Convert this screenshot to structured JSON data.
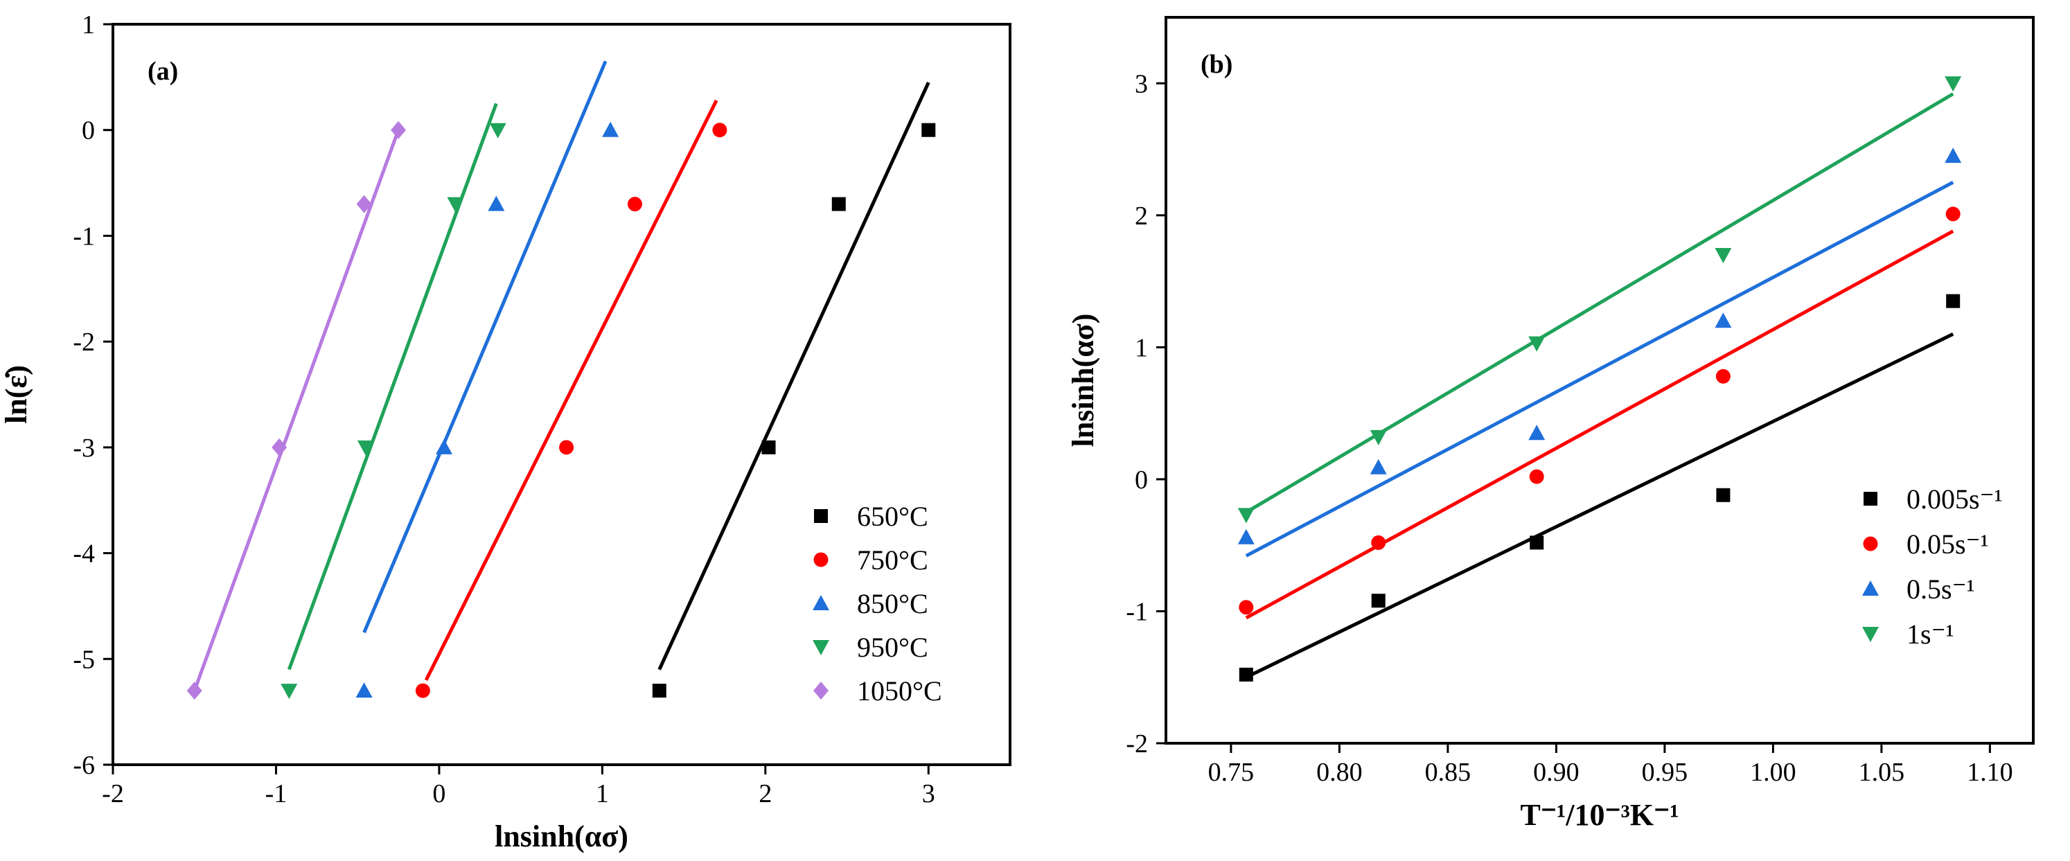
{
  "chart_data": [
    {
      "type": "scatter",
      "panel_label": "(a)",
      "xlabel": "lnsinh(ασ)",
      "ylabel": "ln(ε̇)",
      "xlim": [
        -2,
        3.5
      ],
      "ylim": [
        -6,
        1
      ],
      "xticks": [
        -2,
        -1,
        0,
        1,
        2,
        3
      ],
      "yticks": [
        -6,
        -5,
        -4,
        -3,
        -2,
        -1,
        0,
        1
      ],
      "legend_position": "lower-right",
      "series": [
        {
          "name": "650°C",
          "color": "#000000",
          "marker": "square",
          "x": [
            1.35,
            2.02,
            2.45,
            3.0
          ],
          "y": [
            -5.3,
            -3.0,
            -0.7,
            0.0
          ],
          "fit": [
            [
              1.35,
              -5.1
            ],
            [
              3.0,
              0.45
            ]
          ]
        },
        {
          "name": "750°C",
          "color": "#ff0000",
          "marker": "circle",
          "x": [
            -0.1,
            0.78,
            1.2,
            1.72
          ],
          "y": [
            -5.3,
            -3.0,
            -0.7,
            0.0
          ],
          "fit": [
            [
              -0.08,
              -5.2
            ],
            [
              1.7,
              0.28
            ]
          ]
        },
        {
          "name": "850°C",
          "color": "#1e6fd9",
          "marker": "triangle-up",
          "x": [
            -0.46,
            0.03,
            0.35,
            1.05
          ],
          "y": [
            -5.3,
            -3.0,
            -0.7,
            0.0
          ],
          "fit": [
            [
              -0.46,
              -4.75
            ],
            [
              1.02,
              0.65
            ]
          ]
        },
        {
          "name": "950°C",
          "color": "#1fa35a",
          "marker": "triangle-down",
          "x": [
            -0.92,
            -0.45,
            0.1,
            0.36
          ],
          "y": [
            -5.3,
            -3.0,
            -0.7,
            0.0
          ],
          "fit": [
            [
              -0.92,
              -5.1
            ],
            [
              0.35,
              0.25
            ]
          ]
        },
        {
          "name": "1050°C",
          "color": "#b77be0",
          "marker": "diamond",
          "x": [
            -1.5,
            -0.98,
            -0.46,
            -0.25
          ],
          "y": [
            -5.3,
            -3.0,
            -0.7,
            0.0
          ],
          "fit": [
            [
              -1.5,
              -5.3
            ],
            [
              -0.25,
              0.0
            ]
          ]
        }
      ]
    },
    {
      "type": "scatter",
      "panel_label": "(b)",
      "xlabel": "T⁻¹/10⁻³K⁻¹",
      "ylabel": "lnsinh(ασ)",
      "xlim": [
        0.72,
        1.12
      ],
      "ylim": [
        -2,
        3.5
      ],
      "xticks": [
        0.75,
        0.8,
        0.85,
        0.9,
        0.95,
        1.0,
        1.05,
        1.1
      ],
      "yticks": [
        -2,
        -1,
        0,
        1,
        2,
        3
      ],
      "legend_position": "lower-right",
      "series": [
        {
          "name": "0.005s⁻¹",
          "color": "#000000",
          "marker": "square",
          "x": [
            0.757,
            0.818,
            0.891,
            0.977,
            1.083
          ],
          "y": [
            -1.48,
            -0.92,
            -0.48,
            -0.12,
            1.35
          ],
          "fit": [
            [
              0.757,
              -1.5
            ],
            [
              1.083,
              1.1
            ]
          ]
        },
        {
          "name": "0.05s⁻¹",
          "color": "#ff0000",
          "marker": "circle",
          "x": [
            0.757,
            0.818,
            0.891,
            0.977,
            1.083
          ],
          "y": [
            -0.97,
            -0.48,
            0.02,
            0.78,
            2.01
          ],
          "fit": [
            [
              0.757,
              -1.05
            ],
            [
              1.083,
              1.88
            ]
          ]
        },
        {
          "name": "0.5s⁻¹",
          "color": "#1e6fd9",
          "marker": "triangle-up",
          "x": [
            0.757,
            0.818,
            0.891,
            0.977,
            1.083
          ],
          "y": [
            -0.44,
            0.09,
            0.35,
            1.2,
            2.45
          ],
          "fit": [
            [
              0.757,
              -0.58
            ],
            [
              1.083,
              2.25
            ]
          ]
        },
        {
          "name": "1s⁻¹",
          "color": "#1fa35a",
          "marker": "triangle-down",
          "x": [
            0.757,
            0.818,
            0.891,
            0.977,
            1.083
          ],
          "y": [
            -0.27,
            0.32,
            1.03,
            1.7,
            3.0
          ],
          "fit": [
            [
              0.757,
              -0.25
            ],
            [
              1.083,
              2.92
            ]
          ]
        }
      ]
    }
  ]
}
